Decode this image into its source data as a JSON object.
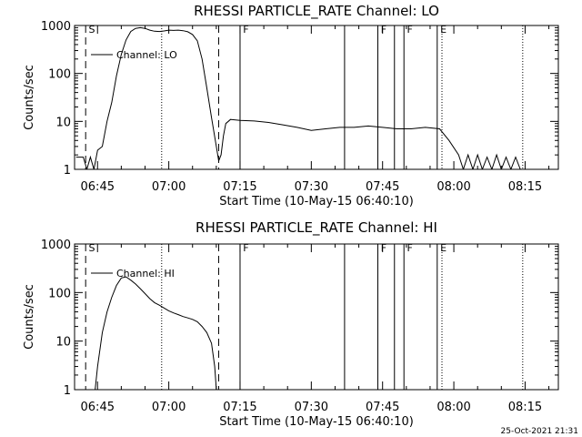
{
  "footer_timestamp": "25-Oct-2021 21:31",
  "colors": {
    "background": "#ffffff",
    "foreground": "#000000"
  },
  "chart_data": [
    {
      "type": "line",
      "title": "RHESSI PARTICLE_RATE Channel: LO",
      "xlabel": "Start Time (10-May-15 06:40:10)",
      "ylabel": "Counts/sec",
      "yscale": "log",
      "ylim": [
        1,
        1000
      ],
      "xlim": [
        "06:40:10",
        "08:22:00"
      ],
      "x_ticks": [
        "06:45",
        "07:00",
        "07:15",
        "07:30",
        "07:45",
        "08:00",
        "08:15"
      ],
      "y_ticks": [
        "1",
        "10",
        "100",
        "1000"
      ],
      "legend": {
        "label": "Channel: LO",
        "placement": "top-left"
      },
      "series": [
        {
          "name": "Channel: LO",
          "x": [
            "06:40:30",
            "06:42:00",
            "06:42:45",
            "06:43:30",
            "06:44:15",
            "06:45:00",
            "06:46:00",
            "06:47:00",
            "06:48:00",
            "06:49:00",
            "06:50:00",
            "06:51:00",
            "06:52:00",
            "06:53:00",
            "06:54:00",
            "06:55:00",
            "06:56:00",
            "06:57:00",
            "06:58:00",
            "06:59:00",
            "07:00:00",
            "07:01:00",
            "07:02:00",
            "07:03:00",
            "07:04:00",
            "07:05:00",
            "07:06:00",
            "07:07:00",
            "07:08:00",
            "07:09:00",
            "07:10:00",
            "07:10:30",
            "07:11:00",
            "07:11:30",
            "07:12:00",
            "07:13:00",
            "07:15:00",
            "07:18:00",
            "07:21:00",
            "07:24:00",
            "07:27:00",
            "07:30:00",
            "07:33:00",
            "07:36:00",
            "07:39:00",
            "07:42:00",
            "07:45:00",
            "07:48:00",
            "07:51:00",
            "07:54:00",
            "07:57:00",
            "07:59:00",
            "08:01:00",
            "08:02:00",
            "08:03:00",
            "08:04:00",
            "08:05:00",
            "08:06:00",
            "08:07:00",
            "08:08:00",
            "08:09:00",
            "08:10:00",
            "08:11:00",
            "08:12:00",
            "08:13:00",
            "08:14:00",
            "08:15:00",
            "08:16:00"
          ],
          "y": [
            1.8,
            1.8,
            1.0,
            1.8,
            1.0,
            2.5,
            3.0,
            10,
            25,
            90,
            250,
            500,
            750,
            870,
            900,
            870,
            800,
            760,
            750,
            770,
            800,
            790,
            800,
            780,
            740,
            650,
            480,
            200,
            50,
            12,
            3,
            1.5,
            2,
            5,
            9,
            11,
            10.5,
            10.2,
            9.5,
            8.5,
            7.5,
            6.5,
            7,
            7.5,
            7.5,
            8,
            7.5,
            7,
            7,
            7.5,
            7,
            4,
            2,
            1,
            2,
            1,
            2,
            1,
            1.8,
            1,
            2,
            1,
            1.8,
            1,
            1.8,
            1,
            1,
            1
          ]
        }
      ],
      "dashed_markers": [
        "06:42:30",
        "07:10:30"
      ],
      "dotted_markers": [
        "06:58:30",
        "07:57:30",
        "08:14:30"
      ],
      "solid_markers": [
        "07:15:00",
        "07:37:00",
        "07:44:00",
        "07:47:30",
        "07:49:30",
        "07:56:30"
      ],
      "annotations": [
        {
          "text": "S",
          "x": "06:42:45"
        },
        {
          "text": "F",
          "x": "07:15:15"
        },
        {
          "text": "F",
          "x": "07:44:15"
        },
        {
          "text": "F",
          "x": "07:49:45"
        },
        {
          "text": "E",
          "x": "07:56:45"
        }
      ]
    },
    {
      "type": "line",
      "title": "RHESSI PARTICLE_RATE Channel: HI",
      "xlabel": "Start Time (10-May-15 06:40:10)",
      "ylabel": "Counts/sec",
      "yscale": "log",
      "ylim": [
        1,
        1000
      ],
      "xlim": [
        "06:40:10",
        "08:22:00"
      ],
      "x_ticks": [
        "06:45",
        "07:00",
        "07:15",
        "07:30",
        "07:45",
        "08:00",
        "08:15"
      ],
      "y_ticks": [
        "1",
        "10",
        "100",
        "1000"
      ],
      "legend": {
        "label": "Channel: HI",
        "placement": "top-left"
      },
      "series": [
        {
          "name": "Channel: HI",
          "x": [
            "06:44:30",
            "06:45:00",
            "06:46:00",
            "06:47:00",
            "06:48:00",
            "06:49:00",
            "06:50:00",
            "06:51:00",
            "06:52:00",
            "06:53:00",
            "06:54:00",
            "06:55:00",
            "06:56:00",
            "06:57:00",
            "06:58:00",
            "06:59:00",
            "07:00:00",
            "07:01:00",
            "07:02:00",
            "07:03:00",
            "07:04:00",
            "07:05:00",
            "07:06:00",
            "07:07:00",
            "07:08:00",
            "07:09:00",
            "07:09:40",
            "07:10:00"
          ],
          "y": [
            1,
            3,
            15,
            40,
            80,
            140,
            200,
            210,
            180,
            150,
            120,
            95,
            75,
            62,
            55,
            48,
            42,
            38,
            35,
            32,
            30,
            28,
            25,
            20,
            15,
            9,
            3,
            1
          ]
        }
      ],
      "dashed_markers": [
        "06:42:30",
        "07:10:30"
      ],
      "dotted_markers": [
        "06:58:30",
        "07:57:30",
        "08:14:30"
      ],
      "solid_markers": [
        "07:15:00",
        "07:37:00",
        "07:44:00",
        "07:47:30",
        "07:49:30",
        "07:56:30"
      ],
      "annotations": [
        {
          "text": "S",
          "x": "06:42:45"
        },
        {
          "text": "F",
          "x": "07:15:15"
        },
        {
          "text": "F",
          "x": "07:44:15"
        },
        {
          "text": "F",
          "x": "07:49:45"
        },
        {
          "text": "E",
          "x": "07:56:45"
        }
      ]
    }
  ]
}
